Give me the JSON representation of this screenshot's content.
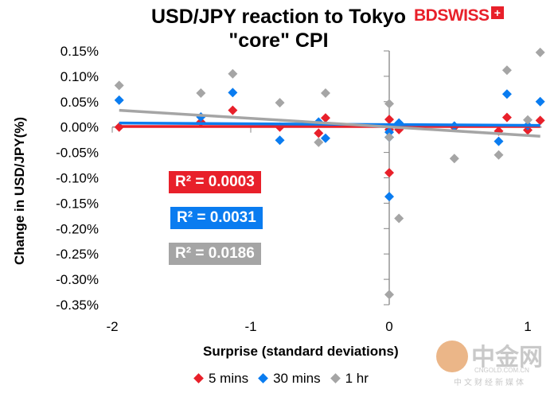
{
  "chart_data": {
    "type": "scatter",
    "title": "USD/JPY reaction to Tokyo \"core\" CPI",
    "xlabel": "Surprise (standard deviations)",
    "ylabel": "Change in USD/JPY(%)",
    "xlim": [
      -2,
      1.1
    ],
    "ylim": [
      -0.35,
      0.15
    ],
    "xticks": [
      "-2",
      "-1",
      "0",
      "1"
    ],
    "yticks": [
      "0.15%",
      "0.10%",
      "0.05%",
      "0.00%",
      "-0.05%",
      "-0.10%",
      "-0.15%",
      "-0.20%",
      "-0.25%",
      "-0.30%",
      "-0.35%"
    ],
    "x": [
      -1.95,
      -1.36,
      -1.13,
      -0.79,
      -0.51,
      -0.46,
      0,
      0,
      0,
      0.07,
      0.47,
      0.79,
      0.85,
      1.0,
      1.09
    ],
    "series": [
      {
        "name": "5 mins",
        "color": "#e8202a",
        "values": [
          0.0,
          0.01,
          0.033,
          0.0,
          -0.012,
          0.018,
          0.015,
          -0.09,
          -0.005,
          -0.005,
          0.0,
          -0.008,
          0.019,
          -0.006,
          0.013
        ],
        "trend": {
          "slope": 0.0,
          "intercept": 0.001
        },
        "r2": "R² = 0.0003"
      },
      {
        "name": "30 mins",
        "color": "#0a7cf0",
        "values": [
          0.053,
          0.02,
          0.068,
          -0.026,
          0.01,
          -0.022,
          -0.01,
          -0.137,
          -0.02,
          0.008,
          0.002,
          -0.028,
          0.065,
          0.003,
          0.05
        ],
        "trend": {
          "slope": -0.0016,
          "intercept": 0.0049
        },
        "r2": "R² = 0.0031"
      },
      {
        "name": "1 hr",
        "color": "#a5a5a5",
        "values": [
          0.082,
          0.067,
          0.105,
          0.048,
          -0.03,
          0.067,
          0.046,
          -0.33,
          -0.02,
          -0.18,
          -0.062,
          -0.055,
          0.112,
          0.014,
          0.147
        ],
        "trend": {
          "slope": -0.0168,
          "intercept": 0.0003
        },
        "r2": "R² = 0.0186"
      }
    ],
    "legend": "bottom"
  },
  "logo": {
    "bd": "BD",
    "swiss": "SWISS",
    "plus": "+"
  },
  "watermark": {
    "big": "中金网",
    "small": "CNGOLD.COM.CN",
    "cn": "中文财经新媒体"
  }
}
